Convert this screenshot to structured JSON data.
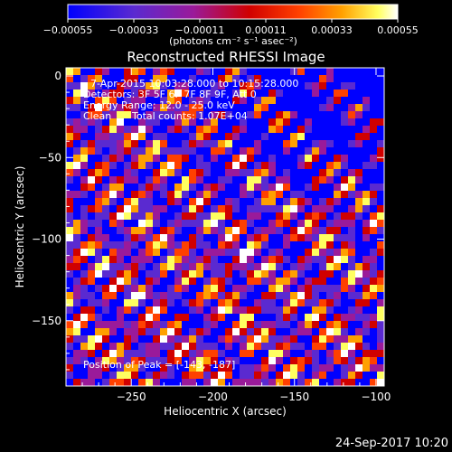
{
  "chart_data": {
    "type": "heatmap",
    "title": "Reconstructed RHESSI Image",
    "xlabel": "Heliocentric X (arcsec)",
    "ylabel": "Heliocentric Y (arcsec)",
    "xlim": [
      -290,
      -95
    ],
    "ylim": [
      -190,
      5
    ],
    "x_ticks": [
      -250,
      -200,
      -150,
      -100
    ],
    "y_ticks": [
      0,
      -50,
      -100,
      -150
    ],
    "colorbar": {
      "range": [
        -0.00055,
        0.00055
      ],
      "tick_values": [
        -0.00055,
        -0.00033,
        -0.00011,
        0.00011,
        0.00033,
        0.00055
      ],
      "tick_labels": [
        "-0.00055",
        "-0.00033",
        "-0.00011",
        "0.00011",
        "0.00033",
        "0.00055"
      ],
      "units_label": "(photons cm⁻² s⁻¹ asec⁻²)",
      "colors": [
        "#0000ff",
        "#5a2ad0",
        "#9a1a9a",
        "#d00000",
        "#ff4000",
        "#ffa000",
        "#ffff60",
        "#ffffff"
      ]
    },
    "pattern_stripe_angle_deg": 45,
    "pattern_stripe_period_arcsec": 20
  },
  "annotations": {
    "time_range": "7-Apr-2015 10:03:28.000 to 10:15:28.000",
    "detectors": "Detectors: 3F 5F 6F 7F 8F 9F, Att 0",
    "energy_range": "Energy Range: 12.0 - 25.0 keV",
    "clean_label": "Clean",
    "total_counts": "Total counts: 1.07E+04",
    "peak_position": "Position of Peak = [-143, -187]"
  },
  "footer": {
    "timestamp": "24-Sep-2017 10:20"
  }
}
